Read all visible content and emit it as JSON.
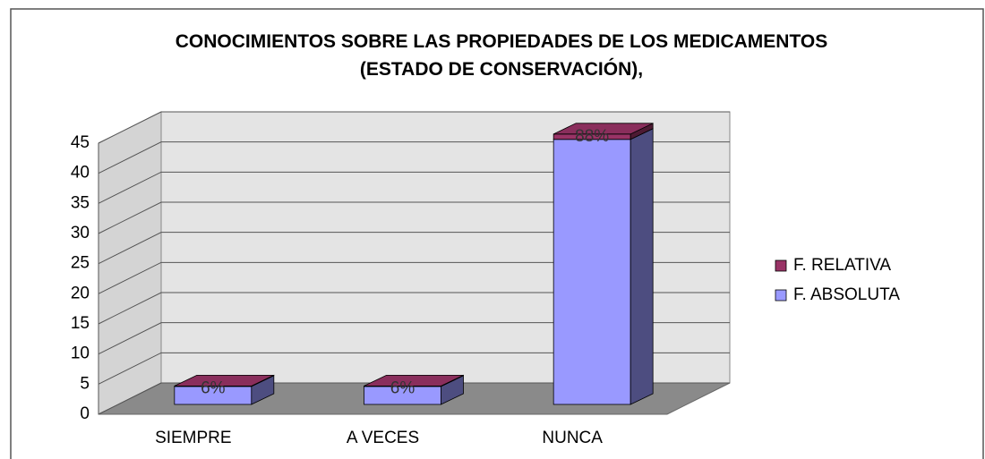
{
  "chart_data": {
    "type": "bar3d_stacked",
    "title": "CONOCIMIENTOS SOBRE LAS PROPIEDADES DE LOS MEDICAMENTOS (ESTADO DE CONSERVACIÓN),",
    "categories": [
      "SIEMPRE",
      "A VECES",
      "NUNCA"
    ],
    "series": [
      {
        "name": "F. RELATIVA",
        "color": "#993366",
        "values": [
          0.06,
          0.06,
          0.88
        ],
        "value_labels": [
          "6%",
          "6%",
          "88%"
        ]
      },
      {
        "name": "F. ABSOLUTA",
        "color": "#9999ff",
        "values": [
          3,
          3,
          44
        ]
      }
    ],
    "ylim": [
      0,
      45
    ],
    "yticks": [
      0,
      5,
      10,
      15,
      20,
      25,
      30,
      35,
      40,
      45
    ],
    "grid": true,
    "legend": "right"
  }
}
